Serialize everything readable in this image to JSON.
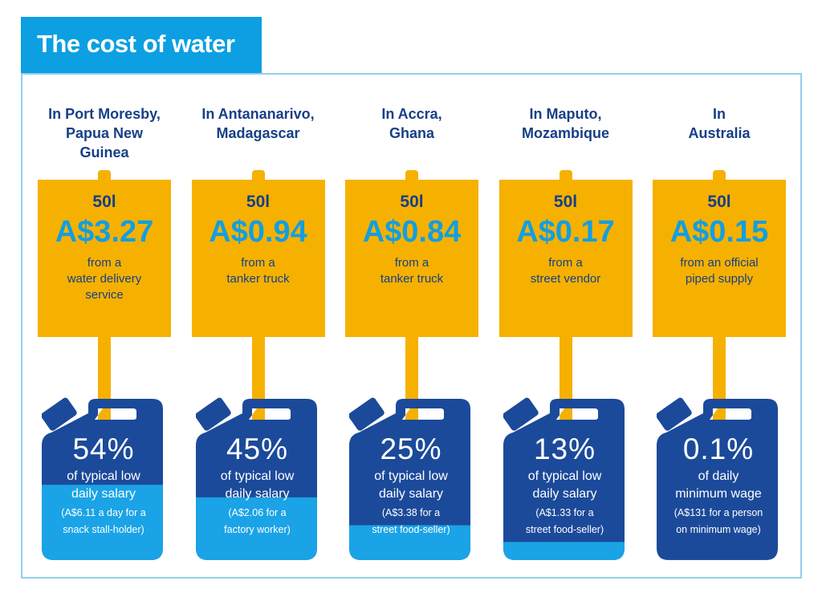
{
  "title": "The cost of water",
  "colors": {
    "title_bg": "#0c9fe2",
    "sign": "#f6b100",
    "navy": "#1c4a9a",
    "water": "#1aa3e6",
    "frame": "#8fd0ee"
  },
  "icons": {
    "sign": "signpost",
    "container": "jerrycan-icon"
  },
  "columns": [
    {
      "heading": [
        "In Port Moresby,",
        "Papua New",
        "Guinea"
      ],
      "volume": "50l",
      "price": "A$3.27",
      "desc": [
        "from a",
        "water delivery",
        "service"
      ],
      "percent_label": "54%",
      "percent": 54,
      "line1": "of typical low",
      "line2": "daily salary",
      "note": [
        "(A$6.11 a day for a",
        "snack stall-holder)"
      ]
    },
    {
      "heading": [
        "In Antananarivo,",
        "Madagascar"
      ],
      "volume": "50l",
      "price": "A$0.94",
      "desc": [
        "from a",
        "tanker truck"
      ],
      "percent_label": "45%",
      "percent": 45,
      "line1": "of typical low",
      "line2": "daily salary",
      "note": [
        "(A$2.06 for a",
        "factory worker)"
      ]
    },
    {
      "heading": [
        "In Accra,",
        "Ghana"
      ],
      "volume": "50l",
      "price": "A$0.84",
      "desc": [
        "from a",
        "tanker truck"
      ],
      "percent_label": "25%",
      "percent": 25,
      "line1": "of typical low",
      "line2": "daily salary",
      "note": [
        "(A$3.38 for a",
        "street food-seller)"
      ]
    },
    {
      "heading": [
        "In Maputo,",
        "Mozambique"
      ],
      "volume": "50l",
      "price": "A$0.17",
      "desc": [
        "from a",
        "street vendor"
      ],
      "percent_label": "13%",
      "percent": 13,
      "line1": "of typical low",
      "line2": "daily salary",
      "note": [
        "(A$1.33 for a",
        "street food-seller)"
      ]
    },
    {
      "heading": [
        "In",
        "Australia"
      ],
      "volume": "50l",
      "price": "A$0.15",
      "desc": [
        "from an official",
        "piped supply"
      ],
      "percent_label": "0.1%",
      "percent": 0.1,
      "line1": "of daily",
      "line2": "minimum wage",
      "note": [
        "(A$131 for a person",
        "on minimum wage)"
      ]
    }
  ]
}
